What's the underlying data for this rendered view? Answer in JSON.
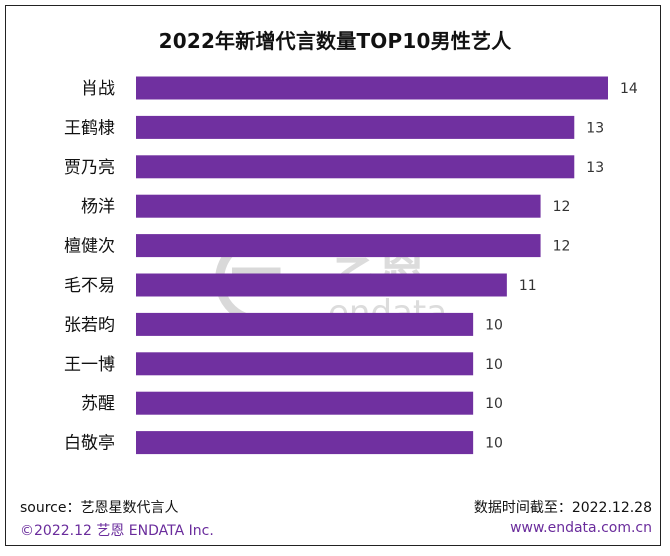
{
  "colors": {
    "bar": "#7030A0",
    "footer_accent": "#6a2c9c",
    "watermark": "#d7d7d7"
  },
  "watermark": {
    "logo_text_cn": "艺恩",
    "logo_text_en": "endata"
  },
  "chart_data": {
    "type": "bar",
    "orientation": "horizontal",
    "title": "2022年新增代言数量TOP10男性艺人",
    "categories": [
      "肖战",
      "王鹤棣",
      "贾乃亮",
      "杨洋",
      "檀健次",
      "毛不易",
      "张若昀",
      "王一博",
      "苏醒",
      "白敬亭"
    ],
    "values": [
      14,
      13,
      13,
      12,
      12,
      11,
      10,
      10,
      10,
      10
    ],
    "xlim": [
      0,
      14
    ],
    "grid": false,
    "legend": "none",
    "data_labels": true
  },
  "footer": {
    "source": "source：艺恩星数代言人",
    "date": "数据时间截至：2022.12.28",
    "copyright": "©2022.12  艺恩 ENDATA Inc.",
    "website": "www.endata.com.cn"
  }
}
